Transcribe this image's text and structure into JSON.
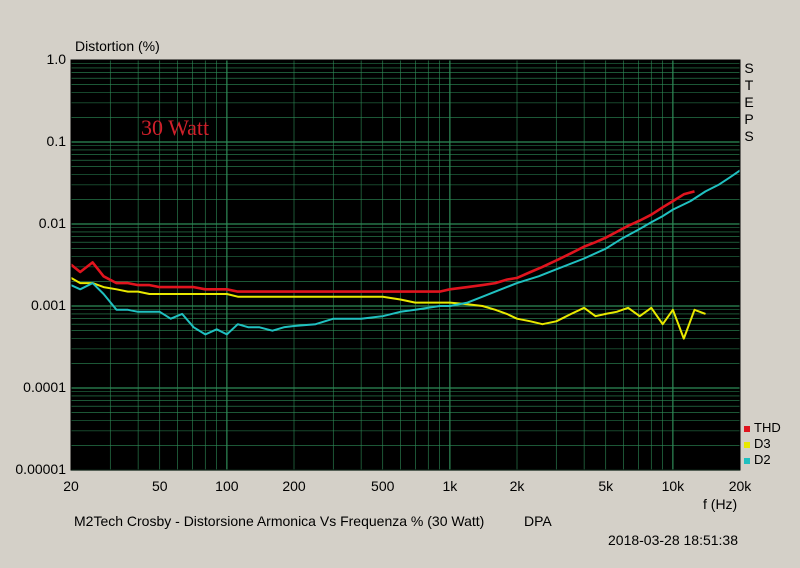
{
  "header": {
    "ylabel": "Distortion (%)"
  },
  "right_tag": "STEPS",
  "footer": {
    "caption": "M2Tech Crosby - Distorsione Armonica Vs Frequenza % (30 Watt)",
    "brand": "DPA",
    "timestamp": "2018-03-28 18:51:38"
  },
  "colors": {
    "plot_bg": "#000000",
    "grid": "#2e8b57",
    "frame_bg": "#d4d0c8",
    "annotation": "#d0202a"
  },
  "chart_data": {
    "type": "line",
    "title": "",
    "xlabel": "f (Hz)",
    "ylabel": "Distortion (%)",
    "xscale": "log",
    "yscale": "log",
    "xlim": [
      20,
      20000
    ],
    "ylim": [
      1e-05,
      1.0
    ],
    "grid": true,
    "legend_position": "bottom-right",
    "annotation": "30 Watt",
    "x_ticks": [
      {
        "value": 20,
        "label": "20"
      },
      {
        "value": 50,
        "label": "50"
      },
      {
        "value": 100,
        "label": "100"
      },
      {
        "value": 200,
        "label": "200"
      },
      {
        "value": 500,
        "label": "500"
      },
      {
        "value": 1000,
        "label": "1k"
      },
      {
        "value": 2000,
        "label": "2k"
      },
      {
        "value": 5000,
        "label": "5k"
      },
      {
        "value": 10000,
        "label": "10k"
      },
      {
        "value": 20000,
        "label": "20k"
      }
    ],
    "y_ticks": [
      {
        "value": 1.0,
        "label": "1.0"
      },
      {
        "value": 0.1,
        "label": "0.1"
      },
      {
        "value": 0.01,
        "label": "0.01"
      },
      {
        "value": 0.001,
        "label": "0.001"
      },
      {
        "value": 0.0001,
        "label": "0.0001"
      },
      {
        "value": 1e-05,
        "label": "0.00001"
      }
    ],
    "series": [
      {
        "name": "THD",
        "color": "#e0141e",
        "x": [
          20,
          22,
          25,
          28,
          32,
          36,
          40,
          45,
          50,
          56,
          63,
          71,
          80,
          90,
          100,
          112,
          125,
          140,
          160,
          180,
          200,
          250,
          300,
          400,
          500,
          600,
          700,
          800,
          900,
          1000,
          1200,
          1400,
          1600,
          1800,
          2000,
          2300,
          2600,
          3000,
          3500,
          4000,
          4500,
          5000,
          5600,
          6300,
          7100,
          8000,
          9000,
          10000,
          11200,
          12500
        ],
        "values": [
          0.0032,
          0.0026,
          0.0034,
          0.0023,
          0.0019,
          0.0019,
          0.0018,
          0.0018,
          0.0017,
          0.0017,
          0.0017,
          0.0017,
          0.0016,
          0.0016,
          0.0016,
          0.0015,
          0.0015,
          0.0015,
          0.0015,
          0.0015,
          0.0015,
          0.0015,
          0.0015,
          0.0015,
          0.0015,
          0.0015,
          0.0015,
          0.0015,
          0.0015,
          0.0016,
          0.0017,
          0.0018,
          0.0019,
          0.0021,
          0.0022,
          0.0026,
          0.003,
          0.0036,
          0.0044,
          0.0053,
          0.006,
          0.0068,
          0.008,
          0.0095,
          0.011,
          0.013,
          0.016,
          0.019,
          0.023,
          0.025
        ]
      },
      {
        "name": "D3",
        "color": "#e8e800",
        "x": [
          20,
          22,
          25,
          28,
          32,
          36,
          40,
          45,
          50,
          56,
          63,
          71,
          80,
          90,
          100,
          112,
          125,
          140,
          160,
          180,
          200,
          250,
          300,
          400,
          500,
          600,
          700,
          800,
          900,
          1000,
          1200,
          1400,
          1600,
          1800,
          2000,
          2300,
          2600,
          3000,
          3500,
          4000,
          4500,
          5000,
          5600,
          6300,
          7100,
          8000,
          9000,
          10000,
          11200,
          12500,
          14000
        ],
        "values": [
          0.0022,
          0.0019,
          0.0019,
          0.0017,
          0.0016,
          0.0015,
          0.0015,
          0.0014,
          0.0014,
          0.0014,
          0.0014,
          0.0014,
          0.0014,
          0.0014,
          0.0014,
          0.0013,
          0.0013,
          0.0013,
          0.0013,
          0.0013,
          0.0013,
          0.0013,
          0.0013,
          0.0013,
          0.0013,
          0.0012,
          0.0011,
          0.0011,
          0.0011,
          0.0011,
          0.00105,
          0.001,
          0.0009,
          0.0008,
          0.0007,
          0.00065,
          0.0006,
          0.00065,
          0.0008,
          0.00095,
          0.00075,
          0.0008,
          0.00085,
          0.00095,
          0.00075,
          0.00095,
          0.0006,
          0.0009,
          0.0004,
          0.0009,
          0.0008
        ]
      },
      {
        "name": "D2",
        "color": "#20c0c0",
        "x": [
          20,
          22,
          25,
          28,
          32,
          36,
          40,
          45,
          50,
          56,
          63,
          71,
          80,
          90,
          100,
          112,
          125,
          140,
          160,
          180,
          200,
          250,
          300,
          400,
          500,
          600,
          700,
          800,
          900,
          1000,
          1200,
          1400,
          1600,
          1800,
          2000,
          2500,
          3000,
          4000,
          5000,
          6000,
          7000,
          8000,
          9000,
          10000,
          12000,
          14000,
          16000,
          18000,
          20000
        ],
        "values": [
          0.0018,
          0.0016,
          0.0019,
          0.0014,
          0.0009,
          0.0009,
          0.00085,
          0.00085,
          0.00085,
          0.0007,
          0.0008,
          0.00055,
          0.00045,
          0.00052,
          0.00045,
          0.0006,
          0.00055,
          0.00055,
          0.0005,
          0.00055,
          0.00057,
          0.0006,
          0.0007,
          0.0007,
          0.00075,
          0.00085,
          0.0009,
          0.00095,
          0.001,
          0.001,
          0.0011,
          0.0013,
          0.0015,
          0.0017,
          0.0019,
          0.0023,
          0.0028,
          0.0038,
          0.005,
          0.0068,
          0.0085,
          0.0105,
          0.0125,
          0.015,
          0.019,
          0.025,
          0.03,
          0.037,
          0.045
        ]
      }
    ]
  }
}
